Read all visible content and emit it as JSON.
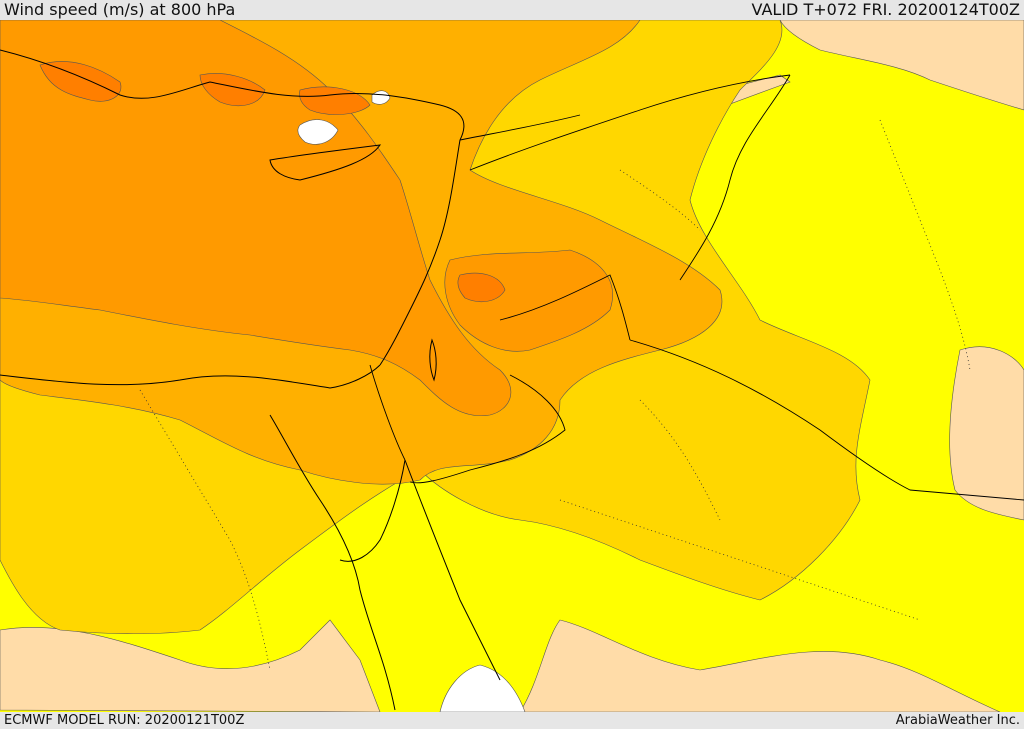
{
  "header": {
    "title": "Wind speed (m/s) at 800 hPa",
    "valid": "VALID T+072 FRI. 20200124T00Z"
  },
  "footer": {
    "model_run": "ECMWF MODEL RUN: 20200121T00Z",
    "credit": "ArabiaWeather Inc."
  },
  "palette": {
    "calm": "#ffffff",
    "light": "#ffdca8",
    "moderate": "#ffff00",
    "fresh": "#ffd700",
    "strong": "#ffb000",
    "very_strong": "#ff9a00",
    "gale": "#ff7f00",
    "coastline": "#000000"
  }
}
